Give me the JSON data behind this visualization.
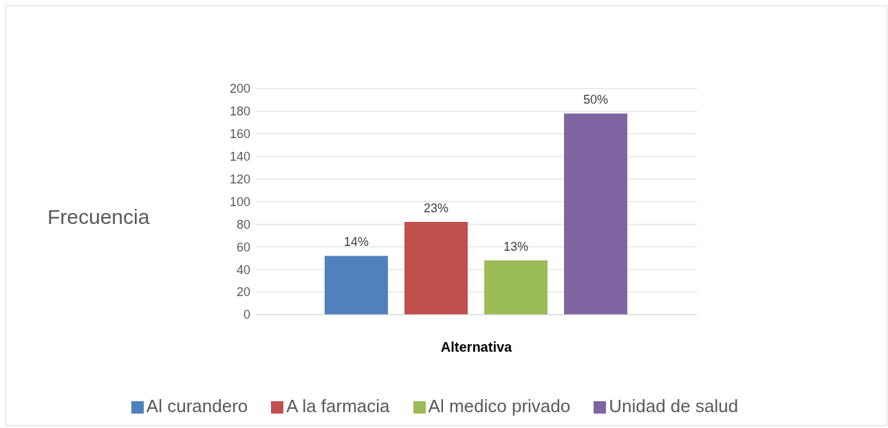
{
  "chart_data": {
    "type": "bar",
    "xlabel": "Alternativa",
    "ylabel": "Frecuencia",
    "categories": [
      null
    ],
    "series": [
      {
        "name": "Al curandero",
        "color": "#4f81bd",
        "values": [
          52
        ]
      },
      {
        "name": "A la farmacia",
        "color": "#c0504d",
        "values": [
          82
        ]
      },
      {
        "name": "Al medico privado",
        "color": "#9bbb59",
        "values": [
          48
        ]
      },
      {
        "name": "Unidad de salud",
        "color": "#8064a2",
        "values": [
          178
        ]
      }
    ],
    "annotations": [
      "14%",
      "23%",
      "13%",
      "50%"
    ],
    "ylim": [
      0,
      200
    ],
    "yticks": [
      0,
      20,
      40,
      60,
      80,
      100,
      120,
      140,
      160,
      180,
      200
    ],
    "grid": "y",
    "legend": "bottom"
  }
}
